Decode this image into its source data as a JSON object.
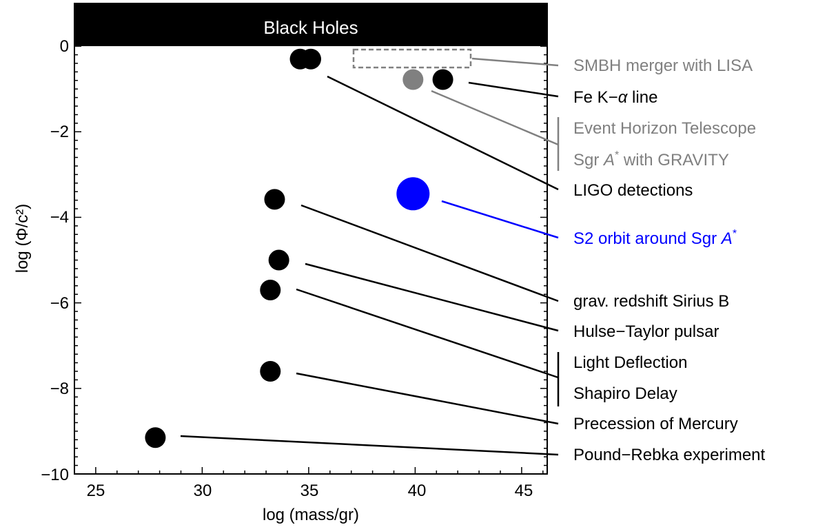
{
  "chart_data": {
    "type": "scatter",
    "title": "",
    "xlabel": "log (mass/gr)",
    "ylabel": "log (Φ/c²)",
    "xlim": [
      24,
      46.2
    ],
    "ylim": [
      -10,
      1
    ],
    "x_ticks": [
      "25",
      "30",
      "35",
      "40",
      "45"
    ],
    "y_ticks": [
      "0",
      "−2",
      "−4",
      "−6",
      "−8",
      "−10"
    ],
    "grid": false,
    "region_label": "Black Holes",
    "region_ymin": 0,
    "points": [
      {
        "x": 34.6,
        "y": -0.3,
        "color": "#000000",
        "size": "medium"
      },
      {
        "x": 35.1,
        "y": -0.3,
        "color": "#000000",
        "size": "medium"
      },
      {
        "x": 39.9,
        "y": -0.78,
        "color": "#808080",
        "size": "medium"
      },
      {
        "x": 41.3,
        "y": -0.78,
        "color": "#000000",
        "size": "medium"
      },
      {
        "x": 39.9,
        "y": -3.45,
        "color": "#0000ff",
        "size": "large"
      },
      {
        "x": 33.4,
        "y": -3.58,
        "color": "#000000",
        "size": "medium"
      },
      {
        "x": 33.6,
        "y": -5.0,
        "color": "#000000",
        "size": "medium"
      },
      {
        "x": 33.2,
        "y": -5.7,
        "color": "#000000",
        "size": "medium"
      },
      {
        "x": 33.2,
        "y": -7.6,
        "color": "#000000",
        "size": "medium"
      },
      {
        "x": 27.8,
        "y": -9.15,
        "color": "#000000",
        "size": "medium"
      }
    ],
    "dashed_region": {
      "x": [
        37.0,
        42.4
      ],
      "y": [
        -0.05,
        -0.45
      ]
    },
    "annotations": {
      "smbh": "SMBH merger with LISA",
      "fe": "Fe K−",
      "fe_alpha": "α",
      "fe_line": " line",
      "eht": "Event Horizon Telescope",
      "sgr_prefix": "Sgr ",
      "sgr_a": "A",
      "sgr_star": "*",
      "sgr_suffix": " with GRAVITY",
      "ligo": "LIGO detections",
      "s2_prefix": "S2 orbit around Sgr ",
      "s2_a": "A",
      "s2_star": "*",
      "sirius": "grav. redshift Sirius B",
      "hulse": "Hulse−Taylor pulsar",
      "deflection": "Light Deflection",
      "shapiro": "Shapiro Delay",
      "mercury": "Precession of Mercury",
      "pound": "Pound−Rebka experiment"
    },
    "colors": {
      "black": "#000000",
      "gray": "#808080",
      "blue": "#0000ff"
    }
  }
}
